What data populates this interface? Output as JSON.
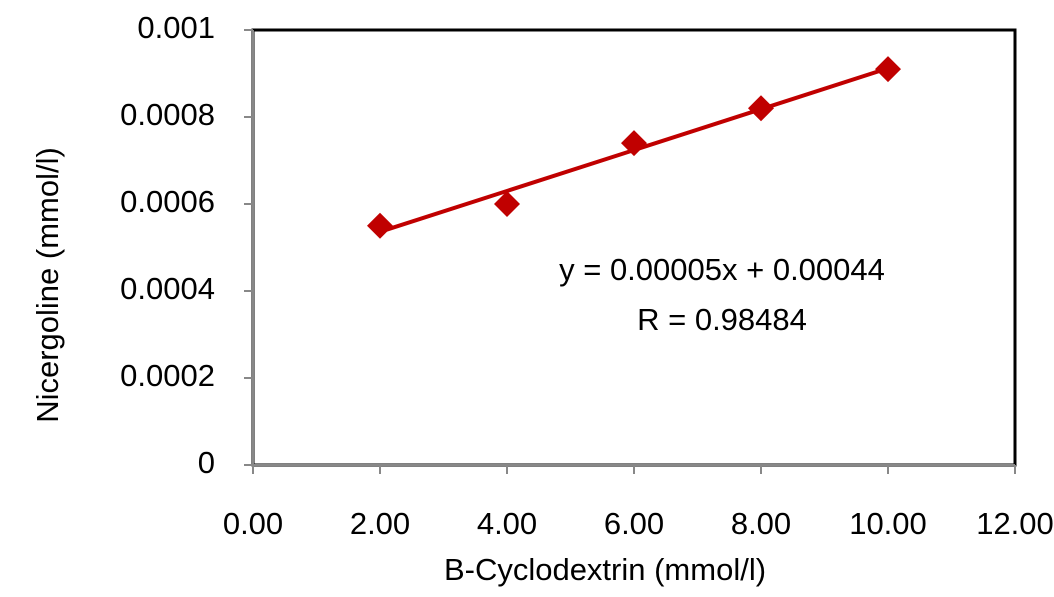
{
  "chart_data": {
    "type": "scatter",
    "xlabel": "B-Cyclodextrin (mmol/l)",
    "ylabel": "Nicergoline (mmol/l)",
    "x": [
      2,
      4,
      6,
      8,
      10
    ],
    "values": [
      0.00055,
      0.0006,
      0.00074,
      0.00082,
      0.00091
    ],
    "color": "#c00000",
    "trendline": true,
    "annotations": [
      "y = 0.00005x + 0.00044",
      "R  = 0.98484"
    ],
    "xlim": [
      0,
      12
    ],
    "xticks": [
      {
        "value": 0,
        "label": "0.00"
      },
      {
        "value": 2,
        "label": "2.00"
      },
      {
        "value": 4,
        "label": "4.00"
      },
      {
        "value": 6,
        "label": "6.00"
      },
      {
        "value": 8,
        "label": "8.00"
      },
      {
        "value": 10,
        "label": "10.00"
      },
      {
        "value": 12,
        "label": "12.00"
      }
    ],
    "ylim": [
      0,
      0.001
    ],
    "yticks": [
      0,
      0.0002,
      0.0004,
      0.0006,
      0.0008,
      0.001
    ]
  }
}
